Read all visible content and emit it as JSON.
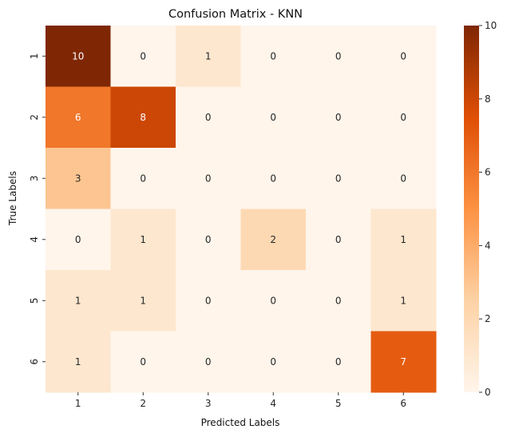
{
  "chart_data": {
    "type": "heatmap",
    "title": "Confusion Matrix - KNN",
    "xlabel": "Predicted Labels",
    "ylabel": "True Labels",
    "x_categories": [
      "1",
      "2",
      "3",
      "4",
      "5",
      "6"
    ],
    "y_categories": [
      "1",
      "2",
      "3",
      "4",
      "5",
      "6"
    ],
    "matrix": [
      [
        10,
        0,
        1,
        0,
        0,
        0
      ],
      [
        6,
        8,
        0,
        0,
        0,
        0
      ],
      [
        3,
        0,
        0,
        0,
        0,
        0
      ],
      [
        0,
        1,
        0,
        2,
        0,
        1
      ],
      [
        1,
        1,
        0,
        0,
        0,
        1
      ],
      [
        1,
        0,
        0,
        0,
        0,
        7
      ]
    ],
    "colorbar": {
      "min": 0,
      "max": 10,
      "ticks": [
        "0",
        "2",
        "4",
        "6",
        "8",
        "10"
      ],
      "colormap": "Oranges",
      "colors": [
        "#fff5eb",
        "#fdd2a5",
        "#fd9243",
        "#df4f05",
        "#7f2704"
      ]
    },
    "annotations": true
  }
}
